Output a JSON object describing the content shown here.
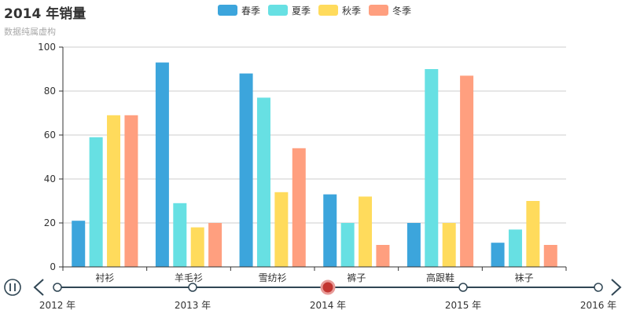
{
  "title": "2014 年销量",
  "subtitle": "数据纯属虚构",
  "colors": {
    "spring": "#3ca5dc",
    "summer": "#67e0e3",
    "autumn": "#ffdb5c",
    "winter": "#ff9f7f",
    "axis": "#333333",
    "grid": "#cccccc",
    "timeline": "#304654",
    "current": "#c23531"
  },
  "timeline": {
    "years": [
      "2012 年",
      "2013 年",
      "2014 年",
      "2015 年",
      "2016 年"
    ],
    "current_index": 2,
    "play_icon": "pause-icon",
    "prev_icon": "chevron-left-icon",
    "next_icon": "chevron-right-icon"
  },
  "chart_data": {
    "type": "bar",
    "title": "2014 年销量",
    "subtitle": "数据纯属虚构",
    "categories": [
      "衬衫",
      "羊毛衫",
      "雪纺衫",
      "裤子",
      "高跟鞋",
      "袜子"
    ],
    "series": [
      {
        "name": "春季",
        "values": [
          21,
          93,
          88,
          33,
          20,
          11
        ]
      },
      {
        "name": "夏季",
        "values": [
          59,
          29,
          77,
          20,
          90,
          17
        ]
      },
      {
        "name": "秋季",
        "values": [
          69,
          18,
          34,
          32,
          20,
          30
        ]
      },
      {
        "name": "冬季",
        "values": [
          69,
          20,
          54,
          10,
          87,
          10
        ]
      }
    ],
    "ylim": [
      0,
      100
    ],
    "yticks": [
      0,
      20,
      40,
      60,
      80,
      100
    ],
    "grid": true,
    "legend": "top-center"
  }
}
